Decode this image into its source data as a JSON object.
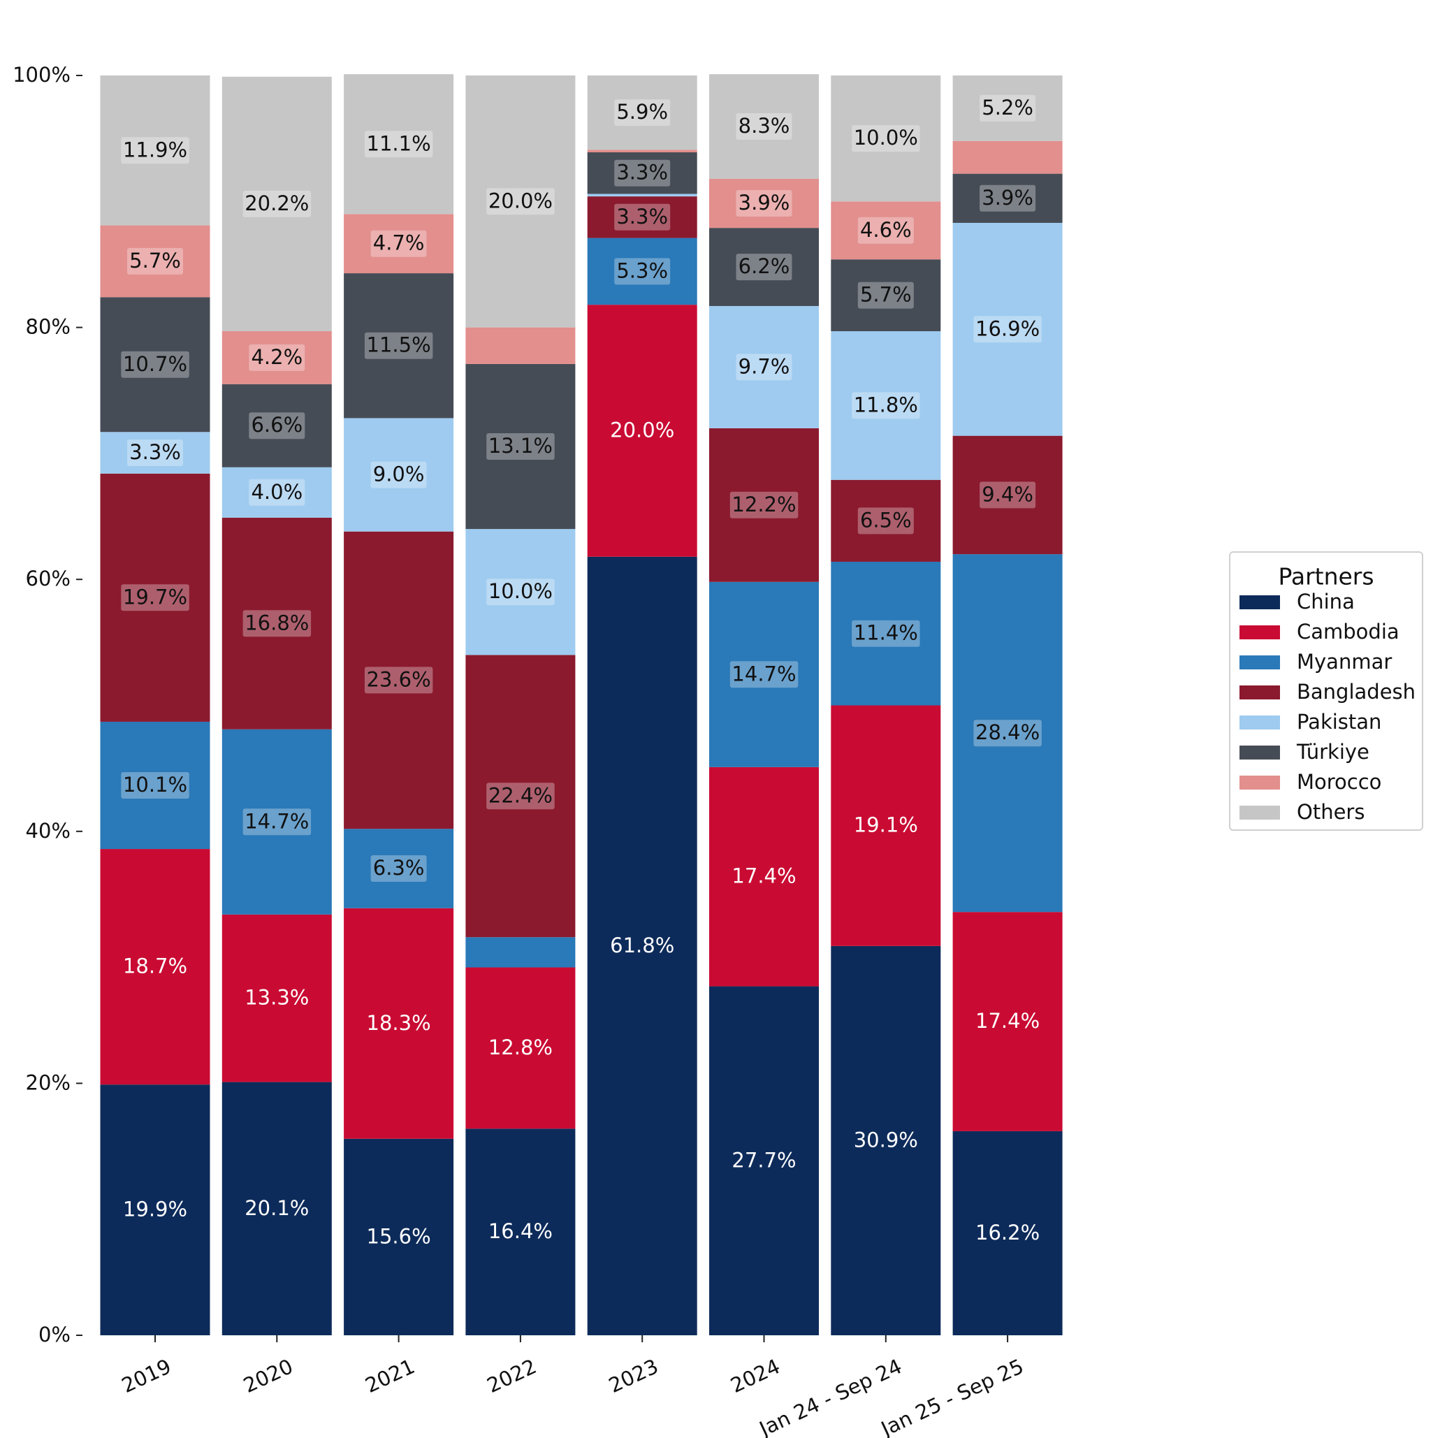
{
  "chart_data": {
    "type": "bar",
    "stacked": true,
    "categories": [
      "2019",
      "2020",
      "2021",
      "2022",
      "2023",
      "2024",
      "Jan 24 - Sep 24",
      "Jan 25 - Sep 25"
    ],
    "ylim": [
      0,
      100
    ],
    "y_ticks": [
      "0%",
      "20%",
      "40%",
      "60%",
      "80%",
      "100%"
    ],
    "y_tick_values": [
      0,
      20,
      40,
      60,
      80,
      100
    ],
    "grid": false,
    "legend": {
      "title": "Partners",
      "position": "right"
    },
    "series": [
      {
        "name": "China",
        "color": "#0d2b5a",
        "label_color": "#ffffff",
        "label_box": false,
        "values": [
          19.9,
          20.1,
          15.6,
          16.4,
          61.8,
          27.7,
          30.9,
          16.2
        ],
        "labels": [
          "19.9%",
          "20.1%",
          "15.6%",
          "16.4%",
          "61.8%",
          "27.7%",
          "30.9%",
          "16.2%"
        ]
      },
      {
        "name": "Cambodia",
        "color": "#c90b33",
        "label_color": "#ffffff",
        "label_box": false,
        "values": [
          18.7,
          13.3,
          18.3,
          12.8,
          20.0,
          17.4,
          19.1,
          17.4
        ],
        "labels": [
          "18.7%",
          "13.3%",
          "18.3%",
          "12.8%",
          "20.0%",
          "17.4%",
          "19.1%",
          "17.4%"
        ]
      },
      {
        "name": "Myanmar",
        "color": "#2a79b8",
        "label_color": "#111111",
        "label_box": true,
        "values": [
          10.1,
          14.7,
          6.3,
          2.4,
          5.3,
          14.7,
          11.4,
          28.4
        ],
        "labels": [
          "10.1%",
          "14.7%",
          "6.3%",
          "",
          "5.3%",
          "14.7%",
          "11.4%",
          "28.4%"
        ]
      },
      {
        "name": "Bangladesh",
        "color": "#8b1a2e",
        "label_color": "#111111",
        "label_box": true,
        "values": [
          19.7,
          16.8,
          23.6,
          22.4,
          3.3,
          12.2,
          6.5,
          9.4
        ],
        "labels": [
          "19.7%",
          "16.8%",
          "23.6%",
          "22.4%",
          "3.3%",
          "12.2%",
          "6.5%",
          "9.4%"
        ]
      },
      {
        "name": "Pakistan",
        "color": "#9ecbef",
        "label_color": "#111111",
        "label_box": true,
        "values": [
          3.3,
          4.0,
          9.0,
          10.0,
          0.2,
          9.7,
          11.8,
          16.9
        ],
        "labels": [
          "3.3%",
          "4.0%",
          "9.0%",
          "10.0%",
          "",
          "9.7%",
          "11.8%",
          "16.9%"
        ]
      },
      {
        "name": "Türkiye",
        "color": "#464c56",
        "label_color": "#111111",
        "label_box": true,
        "values": [
          10.7,
          6.6,
          11.5,
          13.1,
          3.3,
          6.2,
          5.7,
          3.9
        ],
        "labels": [
          "10.7%",
          "6.6%",
          "11.5%",
          "13.1%",
          "3.3%",
          "6.2%",
          "5.7%",
          "3.9%"
        ]
      },
      {
        "name": "Morocco",
        "color": "#e28f8d",
        "label_color": "#111111",
        "label_box": true,
        "values": [
          5.7,
          4.2,
          4.7,
          2.9,
          0.2,
          3.9,
          4.6,
          2.6
        ],
        "labels": [
          "5.7%",
          "4.2%",
          "4.7%",
          "",
          "",
          "3.9%",
          "4.6%",
          ""
        ]
      },
      {
        "name": "Others",
        "color": "#c6c6c6",
        "label_color": "#111111",
        "label_box": true,
        "values": [
          11.9,
          20.2,
          11.1,
          20.0,
          5.9,
          8.3,
          10.0,
          5.2
        ],
        "labels": [
          "11.9%",
          "20.2%",
          "11.1%",
          "20.0%",
          "5.9%",
          "8.3%",
          "10.0%",
          "5.2%"
        ]
      }
    ]
  }
}
